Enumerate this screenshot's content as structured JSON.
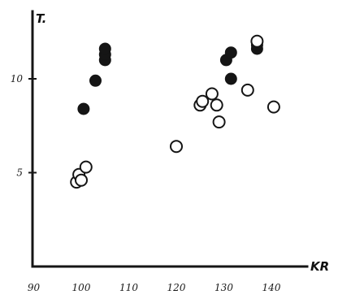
{
  "chart_data": {
    "type": "scatter",
    "xlabel": "KR",
    "ylabel": "T.",
    "xlim": [
      90,
      148
    ],
    "ylim": [
      0,
      14
    ],
    "grid": false,
    "x_ticks": [
      90,
      100,
      110,
      120,
      130,
      140
    ],
    "x_tick_labels": [
      "90",
      "100",
      "110",
      "120",
      "130",
      "140"
    ],
    "y_ticks": [
      5,
      10
    ],
    "y_tick_labels": [
      "5",
      "10"
    ],
    "series": [
      {
        "marker": "filled-circle",
        "color": "#151515",
        "points": [
          {
            "x": 100.5,
            "y": 8.4
          },
          {
            "x": 103,
            "y": 9.9
          },
          {
            "x": 105,
            "y": 11.0
          },
          {
            "x": 105,
            "y": 11.3
          },
          {
            "x": 105,
            "y": 11.6
          },
          {
            "x": 130.5,
            "y": 11.0
          },
          {
            "x": 131.5,
            "y": 11.4
          },
          {
            "x": 131.5,
            "y": 10.0
          },
          {
            "x": 137,
            "y": 11.6
          },
          {
            "x": 137,
            "y": 11.8
          }
        ]
      },
      {
        "marker": "open-circle",
        "color": "#151515",
        "points": [
          {
            "x": 99,
            "y": 4.5
          },
          {
            "x": 99.5,
            "y": 4.9
          },
          {
            "x": 100,
            "y": 4.6
          },
          {
            "x": 101,
            "y": 5.3
          },
          {
            "x": 120,
            "y": 6.4
          },
          {
            "x": 125,
            "y": 8.6
          },
          {
            "x": 125.5,
            "y": 8.8
          },
          {
            "x": 127.5,
            "y": 9.2
          },
          {
            "x": 128.5,
            "y": 8.6
          },
          {
            "x": 129,
            "y": 7.7
          },
          {
            "x": 135,
            "y": 9.4
          },
          {
            "x": 137,
            "y": 12.0
          },
          {
            "x": 140.5,
            "y": 8.5
          }
        ]
      }
    ]
  }
}
